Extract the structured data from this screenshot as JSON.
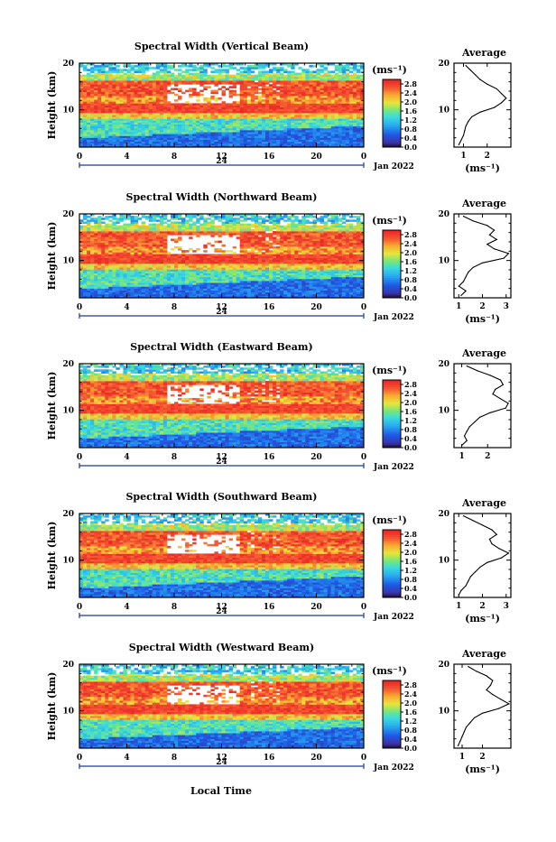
{
  "chart_data": [
    {
      "type": "heatmap",
      "title": "Spectral Width (Vertical Beam)",
      "beam": "Vertical",
      "xlabel": "",
      "ylabel": "Height (km)",
      "x_ticks": [
        "0",
        "4",
        "8",
        "12",
        "16",
        "20",
        "0"
      ],
      "x_range": [
        0,
        24
      ],
      "y_ticks": [
        "20",
        "10"
      ],
      "y_range": [
        2,
        20
      ],
      "date_marker": "24",
      "date_label": "Jan 2022",
      "colorbar": {
        "unit_label": "(ms⁻¹)",
        "ticks": [
          "2.8",
          "2.4",
          "2.0",
          "1.6",
          "1.2",
          "0.8",
          "0.4",
          "0.0"
        ],
        "range": [
          0.0,
          3.0
        ]
      },
      "profile": {
        "title": "Average",
        "xlabel": "(ms⁻¹)",
        "x_ticks": [
          "1",
          "2"
        ],
        "x_range": [
          0.6,
          3.0
        ],
        "y_ticks": [
          "20",
          "10"
        ],
        "height": [
          2.5,
          3.5,
          4.5,
          5.5,
          6.5,
          7.5,
          8.5,
          9.5,
          10.5,
          11.5,
          12.5,
          13.5,
          14.5,
          15.5,
          16.5,
          17.5,
          18.5,
          19.5
        ],
        "width": [
          0.8,
          0.9,
          1.0,
          1.05,
          1.1,
          1.2,
          1.35,
          1.7,
          2.3,
          2.6,
          2.8,
          2.6,
          2.4,
          2.0,
          1.7,
          1.5,
          1.3,
          1.1
        ]
      }
    },
    {
      "type": "heatmap",
      "title": "Spectral Width (Northward Beam)",
      "beam": "Northward",
      "xlabel": "",
      "ylabel": "Height (km)",
      "x_ticks": [
        "0",
        "4",
        "8",
        "12",
        "16",
        "20",
        "0"
      ],
      "x_range": [
        0,
        24
      ],
      "y_ticks": [
        "20",
        "10"
      ],
      "y_range": [
        2,
        20
      ],
      "date_marker": "24",
      "date_label": "Jan 2022",
      "colorbar": {
        "unit_label": "(ms⁻¹)",
        "ticks": [
          "2.8",
          "2.4",
          "2.0",
          "1.6",
          "1.2",
          "0.8",
          "0.4",
          "0.0"
        ],
        "range": [
          0.0,
          3.0
        ]
      },
      "profile": {
        "title": "Average",
        "xlabel": "(ms⁻¹)",
        "x_ticks": [
          "1",
          "2",
          "3"
        ],
        "x_range": [
          0.8,
          3.2
        ],
        "y_ticks": [
          "20",
          "10"
        ],
        "height": [
          2.5,
          3.5,
          4.5,
          5.5,
          6.5,
          7.5,
          8.5,
          9.5,
          10.5,
          11.5,
          12.5,
          13.5,
          14.5,
          15.5,
          16.5,
          17.5,
          18.5,
          19.5
        ],
        "width": [
          1.1,
          1.3,
          1.0,
          1.2,
          1.3,
          1.4,
          1.6,
          2.0,
          2.9,
          3.1,
          2.5,
          2.2,
          2.6,
          2.3,
          2.5,
          2.2,
          1.6,
          1.2
        ]
      }
    },
    {
      "type": "heatmap",
      "title": "Spectral Width (Eastward Beam)",
      "beam": "Eastward",
      "xlabel": "",
      "ylabel": "Height (km)",
      "x_ticks": [
        "0",
        "4",
        "8",
        "12",
        "16",
        "20",
        "0"
      ],
      "x_range": [
        0,
        24
      ],
      "y_ticks": [
        "20",
        "10"
      ],
      "y_range": [
        2,
        20
      ],
      "date_marker": "24",
      "date_label": "Jan 2022",
      "colorbar": {
        "unit_label": "(ms⁻¹)",
        "ticks": [
          "2.8",
          "2.4",
          "2.0",
          "1.6",
          "1.2",
          "0.8",
          "0.4",
          "0.0"
        ],
        "range": [
          0.0,
          3.0
        ]
      },
      "profile": {
        "title": "Average",
        "xlabel": "",
        "x_ticks": [
          "1",
          "2"
        ],
        "x_range": [
          0.7,
          2.9
        ],
        "y_ticks": [
          "20",
          "10"
        ],
        "height": [
          2.5,
          3.5,
          4.5,
          5.5,
          6.5,
          7.5,
          8.5,
          9.5,
          10.5,
          11.5,
          12.5,
          13.5,
          14.5,
          15.5,
          16.5,
          17.5,
          18.5,
          19.5
        ],
        "width": [
          1.0,
          1.2,
          1.1,
          1.2,
          1.3,
          1.5,
          1.7,
          2.1,
          2.7,
          2.8,
          2.5,
          2.2,
          2.3,
          2.6,
          2.5,
          2.1,
          1.6,
          1.2
        ]
      }
    },
    {
      "type": "heatmap",
      "title": "Spectral Width (Southward Beam)",
      "beam": "Southward",
      "xlabel": "",
      "ylabel": "Height (km)",
      "x_ticks": [
        "0",
        "4",
        "8",
        "12",
        "16",
        "20",
        "0"
      ],
      "x_range": [
        0,
        24
      ],
      "y_ticks": [
        "20",
        "10"
      ],
      "y_range": [
        2,
        20
      ],
      "date_marker": "24",
      "date_label": "Jan 2022",
      "colorbar": {
        "unit_label": "(ms⁻¹)",
        "ticks": [
          "2.8",
          "2.4",
          "2.0",
          "1.6",
          "1.2",
          "0.8",
          "0.4",
          "0.0"
        ],
        "range": [
          0.0,
          3.0
        ]
      },
      "profile": {
        "title": "Average",
        "xlabel": "(ms⁻¹)",
        "x_ticks": [
          "1",
          "2",
          "3"
        ],
        "x_range": [
          0.8,
          3.2
        ],
        "y_ticks": [
          "20",
          "10"
        ],
        "height": [
          2.5,
          3.5,
          4.5,
          5.5,
          6.5,
          7.5,
          8.5,
          9.5,
          10.5,
          11.5,
          12.5,
          13.5,
          14.5,
          15.5,
          16.5,
          17.5,
          18.5,
          19.5
        ],
        "width": [
          1.0,
          1.1,
          1.3,
          1.4,
          1.5,
          1.7,
          1.9,
          2.2,
          2.8,
          3.1,
          2.7,
          2.4,
          2.3,
          2.6,
          2.4,
          2.0,
          1.6,
          1.2
        ]
      }
    },
    {
      "type": "heatmap",
      "title": "Spectral Width (Westward Beam)",
      "beam": "Westward",
      "xlabel": "Local Time",
      "ylabel": "Height (km)",
      "x_ticks": [
        "0",
        "4",
        "8",
        "12",
        "16",
        "20",
        "0"
      ],
      "x_range": [
        0,
        24
      ],
      "y_ticks": [
        "20",
        "10"
      ],
      "y_range": [
        2,
        20
      ],
      "date_marker": "24",
      "date_label": "Jan 2022",
      "colorbar": {
        "unit_label": "(ms⁻¹)",
        "ticks": [
          "2.8",
          "2.4",
          "2.0",
          "1.6",
          "1.2",
          "0.8",
          "0.4",
          "0.0"
        ],
        "range": [
          0.0,
          3.0
        ]
      },
      "profile": {
        "title": "Average",
        "xlabel": "(ms⁻¹)",
        "x_ticks": [
          "1",
          "2"
        ],
        "x_range": [
          0.6,
          3.4
        ],
        "y_ticks": [
          "20",
          "10"
        ],
        "height": [
          2.5,
          3.5,
          4.5,
          5.5,
          6.5,
          7.5,
          8.5,
          9.5,
          10.5,
          11.5,
          12.5,
          13.5,
          14.5,
          15.5,
          16.5,
          17.5,
          18.5,
          19.5
        ],
        "width": [
          0.8,
          0.9,
          1.0,
          1.1,
          1.2,
          1.4,
          1.6,
          2.0,
          2.8,
          3.3,
          2.9,
          2.5,
          2.2,
          2.4,
          2.5,
          2.2,
          1.7,
          1.3
        ]
      }
    }
  ]
}
